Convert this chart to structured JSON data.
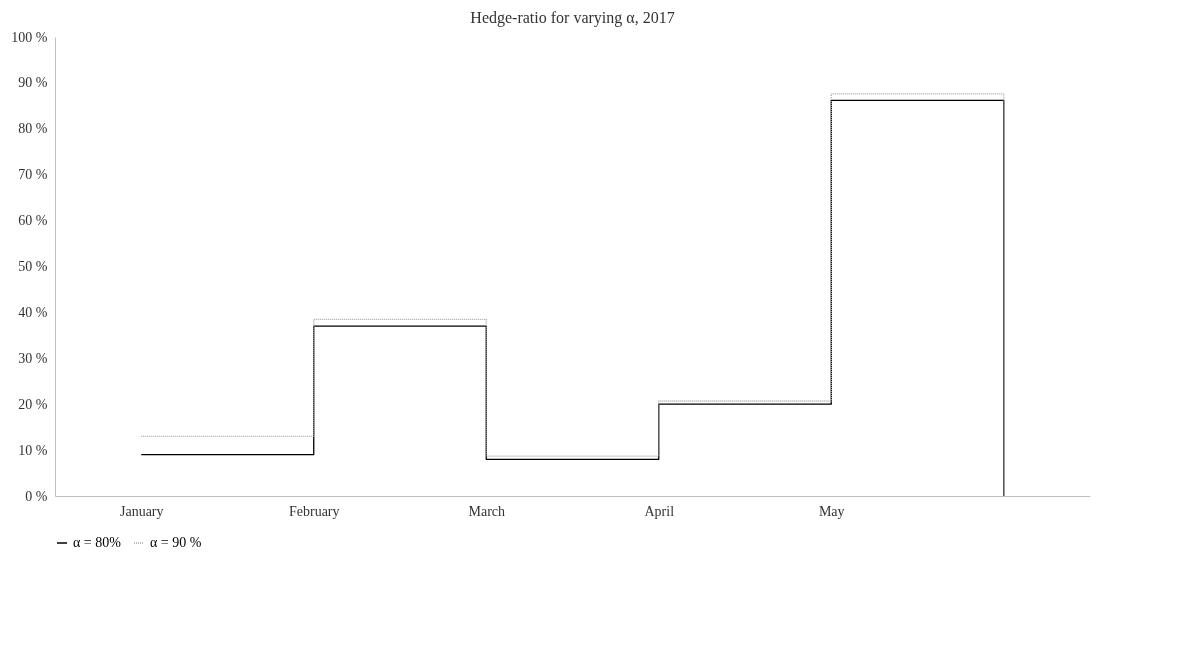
{
  "chart_data": {
    "type": "step",
    "title": "Hedge-ratio  for varying α, 2017",
    "categories": [
      "January",
      "February",
      "March",
      "April",
      "May",
      null
    ],
    "series": [
      {
        "name": "α = 80%",
        "color": "#000000",
        "line_style": "solid",
        "values": [
          9,
          37,
          8,
          20,
          86.2,
          0
        ]
      },
      {
        "name": "α = 90 %",
        "color": "#a6a6a6",
        "line_style": "dotted",
        "values": [
          13,
          38.5,
          8.7,
          20.7,
          87.6,
          0
        ]
      }
    ],
    "ylim": [
      0,
      100
    ],
    "yticks": [
      {
        "value": 0,
        "label": "0 %"
      },
      {
        "value": 10,
        "label": "10 %"
      },
      {
        "value": 20,
        "label": "20 %"
      },
      {
        "value": 30,
        "label": "30 %"
      },
      {
        "value": 40,
        "label": "40 %"
      },
      {
        "value": 50,
        "label": "50 %"
      },
      {
        "value": 60,
        "label": "60 %"
      },
      {
        "value": 70,
        "label": "70 %"
      },
      {
        "value": 80,
        "label": "80 %"
      },
      {
        "value": 90,
        "label": "90 %"
      },
      {
        "value": 100,
        "label": "100 %"
      }
    ],
    "grid": false,
    "legend": "bottom",
    "marker": "none"
  }
}
